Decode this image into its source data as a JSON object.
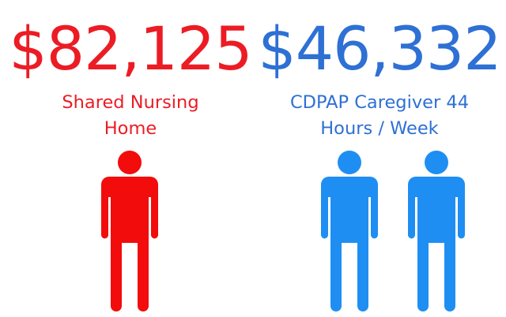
{
  "left_panel": {
    "amount": "$82,125",
    "label_line1": "Shared Nursing",
    "label_line2": "Home",
    "color": "#ec1c24",
    "figure_icon": "person-icon",
    "figure_count": 1
  },
  "right_panel": {
    "amount": "$46,332",
    "label_line1": "CDPAP Caregiver 44",
    "label_line2": "Hours / Week",
    "color": "#2e70d4",
    "figure_color": "#1f8ef3",
    "figure_icon": "person-icon",
    "figure_count": 2
  }
}
